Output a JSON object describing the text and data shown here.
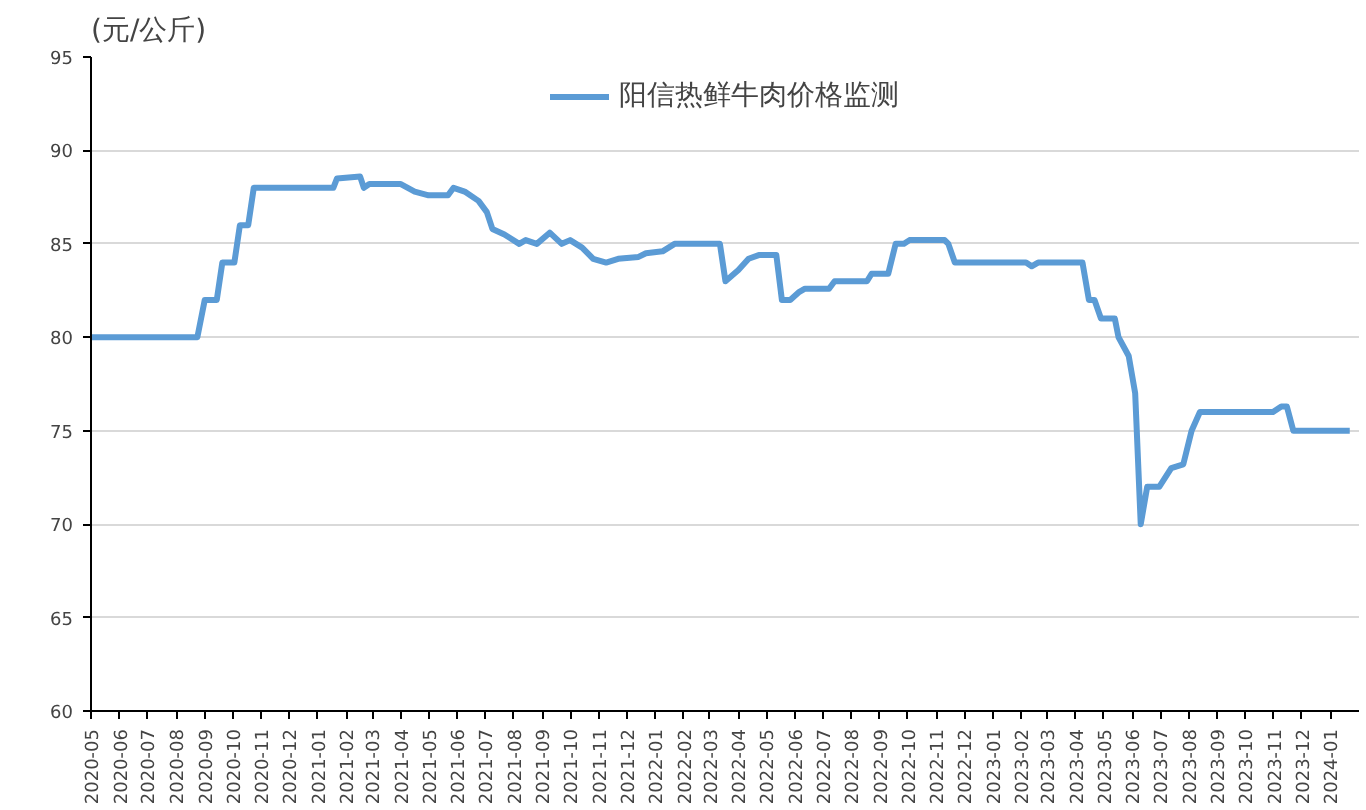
{
  "chart_data": {
    "type": "line",
    "ylabel": "(元/公斤)",
    "legend": "top",
    "grid": "y",
    "line_style": "solid",
    "marker": "none",
    "x": [
      "2020-05-01",
      "2020-08-24",
      "2020-09-01",
      "2020-09-14",
      "2020-09-20",
      "2020-10-03",
      "2020-10-09",
      "2020-10-18",
      "2020-10-24",
      "2021-01-18",
      "2021-01-22",
      "2021-02-16",
      "2021-02-20",
      "2021-02-26",
      "2021-04-01",
      "2021-04-16",
      "2021-05-01",
      "2021-05-22",
      "2021-05-28",
      "2021-06-09",
      "2021-06-24",
      "2021-07-03",
      "2021-07-09",
      "2021-07-22",
      "2021-08-07",
      "2021-08-14",
      "2021-08-26",
      "2021-09-09",
      "2021-09-22",
      "2021-10-01",
      "2021-10-14",
      "2021-10-26",
      "2021-11-09",
      "2021-11-22",
      "2021-12-14",
      "2021-12-22",
      "2022-01-09",
      "2022-01-22",
      "2022-03-12",
      "2022-03-18",
      "2022-04-01",
      "2022-04-12",
      "2022-04-23",
      "2022-05-12",
      "2022-05-18",
      "2022-05-27",
      "2022-06-05",
      "2022-06-12",
      "2022-07-08",
      "2022-07-14",
      "2022-08-18",
      "2022-08-23",
      "2022-09-10",
      "2022-09-18",
      "2022-09-27",
      "2022-10-03",
      "2022-11-10",
      "2022-11-14",
      "2022-11-21",
      "2023-02-06",
      "2023-02-12",
      "2023-02-19",
      "2023-04-08",
      "2023-04-15",
      "2023-04-21",
      "2023-04-28",
      "2023-05-13",
      "2023-05-17",
      "2023-05-28",
      "2023-06-04",
      "2023-06-10",
      "2023-06-17",
      "2023-06-30",
      "2023-07-13",
      "2023-07-26",
      "2023-08-04",
      "2023-08-13",
      "2023-10-31",
      "2023-11-09",
      "2023-11-15",
      "2023-11-22",
      "2024-01-22"
    ],
    "series": [
      {
        "name": "阳信热鲜牛肉价格监测",
        "color": "#5b9bd5",
        "values": [
          80,
          80,
          82,
          82,
          84,
          84,
          86,
          86,
          88,
          88,
          88.5,
          88.6,
          88.0,
          88.2,
          88.2,
          87.8,
          87.6,
          87.6,
          88.0,
          87.8,
          87.3,
          86.7,
          85.8,
          85.5,
          85.0,
          85.2,
          85.0,
          85.6,
          85.0,
          85.2,
          84.8,
          84.2,
          84.0,
          84.2,
          84.3,
          84.5,
          84.6,
          85.0,
          85.0,
          83.0,
          83.6,
          84.2,
          84.4,
          84.4,
          82.0,
          82.0,
          82.4,
          82.6,
          82.6,
          83.0,
          83.0,
          83.4,
          83.4,
          85.0,
          85.0,
          85.2,
          85.2,
          85.0,
          84.0,
          84.0,
          83.8,
          84.0,
          84.0,
          82.0,
          82.0,
          81.0,
          81.0,
          80.0,
          79.0,
          77.0,
          70.0,
          72.0,
          72.0,
          73.0,
          73.2,
          75.0,
          76.0,
          76.0,
          76.3,
          76.3,
          75.0,
          75.0
        ]
      }
    ],
    "xlim": [
      "2020-05-01",
      "2024-02-01"
    ],
    "xticks": [
      "2020-05",
      "2020-06",
      "2020-07",
      "2020-08",
      "2020-09",
      "2020-10",
      "2020-11",
      "2020-12",
      "2021-01",
      "2021-02",
      "2021-03",
      "2021-04",
      "2021-05",
      "2021-06",
      "2021-07",
      "2021-08",
      "2021-09",
      "2021-10",
      "2021-11",
      "2021-12",
      "2022-01",
      "2022-02",
      "2022-03",
      "2022-04",
      "2022-05",
      "2022-06",
      "2022-07",
      "2022-08",
      "2022-09",
      "2022-10",
      "2022-11",
      "2022-12",
      "2023-01",
      "2023-02",
      "2023-03",
      "2023-04",
      "2023-05",
      "2023-06",
      "2023-07",
      "2023-08",
      "2023-09",
      "2023-10",
      "2023-11",
      "2023-12",
      "2024-01"
    ],
    "ylim": [
      60,
      95
    ],
    "yticks": [
      60,
      65,
      70,
      75,
      80,
      85,
      90,
      95
    ]
  }
}
